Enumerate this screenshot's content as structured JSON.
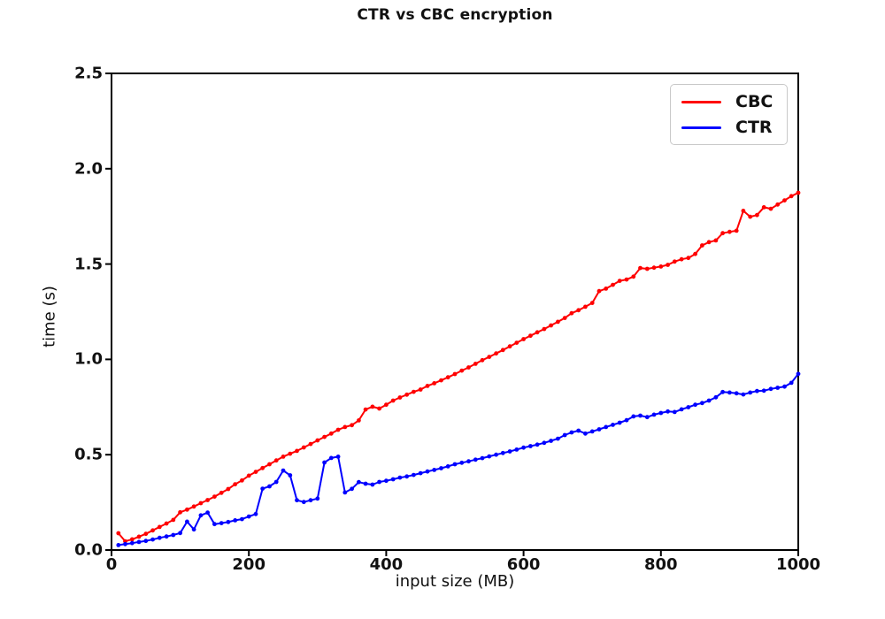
{
  "chart_data": {
    "type": "line",
    "title": "CTR vs CBC encryption",
    "xlabel": "input size (MB)",
    "ylabel": "time (s)",
    "xlim": [
      0,
      1000
    ],
    "ylim": [
      0,
      2.5
    ],
    "xticks": [
      0,
      200,
      400,
      600,
      800,
      1000
    ],
    "xtick_labels": [
      "0",
      "200",
      "400",
      "600",
      "800",
      "1000"
    ],
    "yticks": [
      0,
      0.5,
      1.0,
      1.5,
      2.0,
      2.5
    ],
    "ytick_labels": [
      "0.0",
      "0.5",
      "1.0",
      "1.5",
      "2.0",
      "2.5"
    ],
    "grid": false,
    "marker": "dot",
    "legend_position": "upper right",
    "axis_color": "#000000",
    "x": [
      10,
      20,
      30,
      40,
      50,
      60,
      70,
      80,
      90,
      100,
      110,
      120,
      130,
      140,
      150,
      160,
      170,
      180,
      190,
      200,
      210,
      220,
      230,
      240,
      250,
      260,
      270,
      280,
      290,
      300,
      310,
      320,
      330,
      340,
      350,
      360,
      370,
      380,
      390,
      400,
      410,
      420,
      430,
      440,
      450,
      460,
      470,
      480,
      490,
      500,
      510,
      520,
      530,
      540,
      550,
      560,
      570,
      580,
      590,
      600,
      610,
      620,
      630,
      640,
      650,
      660,
      670,
      680,
      690,
      700,
      710,
      720,
      730,
      740,
      750,
      760,
      770,
      780,
      790,
      800,
      810,
      820,
      830,
      840,
      850,
      860,
      870,
      880,
      890,
      900,
      910,
      920,
      930,
      940,
      950,
      960,
      970,
      980,
      990,
      1000
    ],
    "series": [
      {
        "name": "CBC",
        "color": "#ff0000",
        "values": [
          0.088,
          0.046,
          0.056,
          0.07,
          0.085,
          0.103,
          0.121,
          0.139,
          0.158,
          0.198,
          0.212,
          0.228,
          0.246,
          0.262,
          0.28,
          0.3,
          0.32,
          0.345,
          0.365,
          0.39,
          0.41,
          0.43,
          0.45,
          0.47,
          0.49,
          0.505,
          0.52,
          0.538,
          0.556,
          0.575,
          0.593,
          0.611,
          0.631,
          0.645,
          0.655,
          0.68,
          0.737,
          0.752,
          0.742,
          0.762,
          0.784,
          0.8,
          0.815,
          0.83,
          0.842,
          0.861,
          0.875,
          0.89,
          0.906,
          0.923,
          0.941,
          0.958,
          0.977,
          0.996,
          1.013,
          1.031,
          1.049,
          1.068,
          1.087,
          1.106,
          1.124,
          1.142,
          1.159,
          1.178,
          1.197,
          1.217,
          1.242,
          1.258,
          1.276,
          1.296,
          1.358,
          1.371,
          1.391,
          1.412,
          1.419,
          1.434,
          1.479,
          1.475,
          1.481,
          1.487,
          1.496,
          1.513,
          1.525,
          1.532,
          1.553,
          1.598,
          1.615,
          1.624,
          1.662,
          1.669,
          1.675,
          1.779,
          1.748,
          1.757,
          1.798,
          1.79,
          1.812,
          1.834,
          1.856,
          1.874
        ]
      },
      {
        "name": "CTR",
        "color": "#0000ff",
        "values": [
          0.026,
          0.031,
          0.036,
          0.042,
          0.048,
          0.055,
          0.064,
          0.071,
          0.079,
          0.089,
          0.149,
          0.108,
          0.182,
          0.196,
          0.136,
          0.141,
          0.147,
          0.156,
          0.162,
          0.176,
          0.189,
          0.322,
          0.334,
          0.357,
          0.417,
          0.392,
          0.261,
          0.252,
          0.261,
          0.27,
          0.459,
          0.483,
          0.49,
          0.302,
          0.321,
          0.356,
          0.348,
          0.343,
          0.357,
          0.363,
          0.371,
          0.38,
          0.386,
          0.394,
          0.403,
          0.412,
          0.42,
          0.429,
          0.439,
          0.45,
          0.458,
          0.465,
          0.474,
          0.482,
          0.491,
          0.5,
          0.509,
          0.517,
          0.527,
          0.537,
          0.545,
          0.553,
          0.562,
          0.573,
          0.584,
          0.603,
          0.617,
          0.626,
          0.611,
          0.622,
          0.633,
          0.645,
          0.657,
          0.668,
          0.681,
          0.701,
          0.705,
          0.697,
          0.71,
          0.719,
          0.727,
          0.724,
          0.738,
          0.749,
          0.762,
          0.771,
          0.784,
          0.801,
          0.829,
          0.826,
          0.822,
          0.816,
          0.826,
          0.834,
          0.836,
          0.845,
          0.851,
          0.857,
          0.877,
          0.924
        ]
      }
    ]
  }
}
